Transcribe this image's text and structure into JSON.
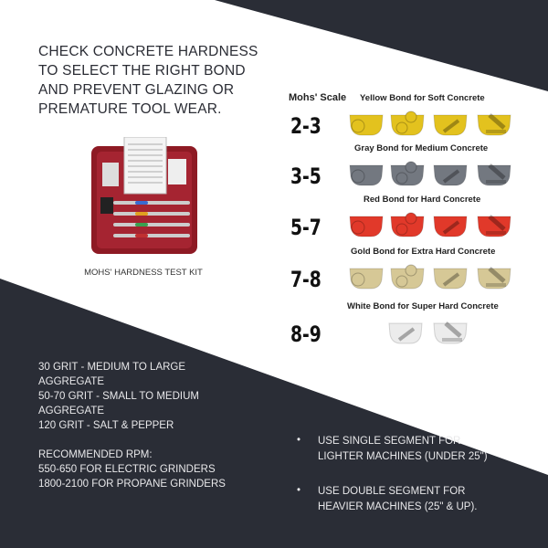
{
  "headline": [
    "CHECK CONCRETE HARDNESS",
    "TO SELECT THE RIGHT BOND",
    "AND PREVENT GLAZING OR",
    "PREMATURE TOOL WEAR."
  ],
  "kit_caption": "MOHS' HARDNESS TEST KIT",
  "scale_label": "Mohs' Scale",
  "bonds": [
    {
      "range": "2-3",
      "title": "Yellow Bond for Soft Concrete",
      "color": "#e3c21e",
      "count": 4
    },
    {
      "range": "3-5",
      "title": "Gray Bond for Medium Concrete",
      "color": "#737880",
      "count": 4
    },
    {
      "range": "5-7",
      "title": "Red Bond for Hard Concrete",
      "color": "#e1392a",
      "count": 4
    },
    {
      "range": "7-8",
      "title": "Gold Bond for Extra Hard Concrete",
      "color": "#d6c896",
      "count": 4
    },
    {
      "range": "8-9",
      "title": "White Bond for Super Hard Concrete",
      "color": "#ececec",
      "count": 2
    }
  ],
  "grit": [
    "30 GRIT - MEDIUM TO LARGE",
    "AGGREGATE",
    "50-70 GRIT - SMALL TO MEDIUM",
    "AGGREGATE",
    "120 GRIT - SALT & PEPPER"
  ],
  "rpm": [
    "RECOMMENDED RPM:",
    "550-650 FOR ELECTRIC GRINDERS",
    "1800-2100 FOR PROPANE GRINDERS"
  ],
  "bullets": [
    {
      "mark": "•",
      "lines": [
        "USE SINGLE SEGMENT FOR",
        "LIGHTER MACHINES (UNDER 25\")"
      ]
    },
    {
      "mark": "•",
      "lines": [
        "USE DOUBLE SEGMENT FOR",
        "HEAVIER MACHINES (25\" & UP)."
      ]
    }
  ],
  "colors": {
    "dark": "#2a2d36",
    "kit_red": "#8e1a24"
  }
}
